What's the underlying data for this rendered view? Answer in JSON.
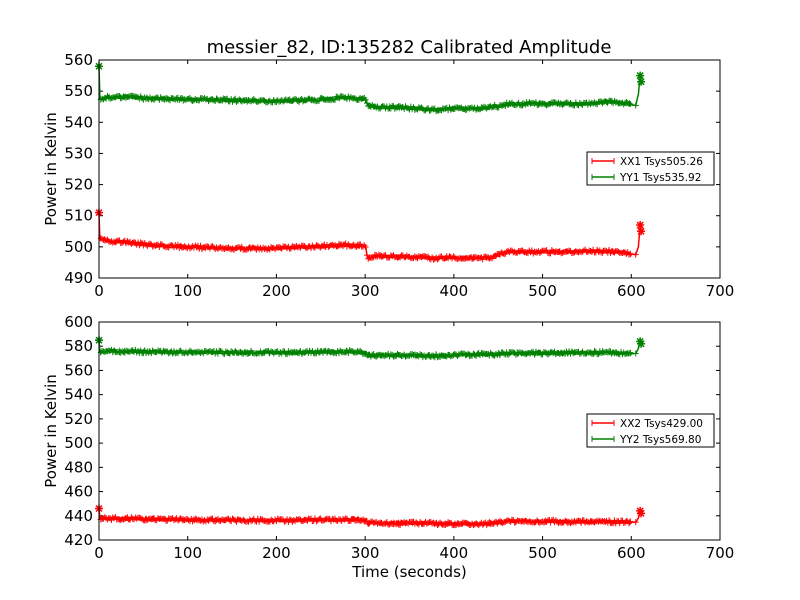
{
  "figure": {
    "title": "messier_82, ID:135282 Calibrated Amplitude"
  },
  "chart_data": [
    {
      "type": "line",
      "title": "messier_82, ID:135282 Calibrated Amplitude",
      "xlabel": "",
      "ylabel": "Power in Kelvin",
      "xlim": [
        0,
        700
      ],
      "ylim": [
        490,
        560
      ],
      "xticks": [
        0,
        100,
        200,
        300,
        400,
        500,
        600,
        700
      ],
      "yticks": [
        490,
        500,
        510,
        520,
        530,
        540,
        550,
        560
      ],
      "grid": false,
      "legend_position": "center-right",
      "series": [
        {
          "name": "XX1 Tsys505.26",
          "color": "#ff0000",
          "marker": "plus",
          "x": [
            0,
            1,
            2,
            10,
            30,
            60,
            100,
            150,
            200,
            250,
            280,
            300,
            303,
            310,
            350,
            380,
            400,
            440,
            460,
            500,
            550,
            580,
            600,
            605,
            608,
            610,
            611
          ],
          "y": [
            511,
            502,
            503,
            502,
            501.5,
            500.5,
            500,
            499.5,
            499.5,
            500.2,
            500.6,
            500.2,
            496.5,
            497,
            496.8,
            496.3,
            496.6,
            496.4,
            498.3,
            498.4,
            498.6,
            498.5,
            497.8,
            497.5,
            500,
            507,
            505
          ]
        },
        {
          "name": "YY1 Tsys535.92",
          "color": "#008000",
          "marker": "plus",
          "x": [
            0,
            1,
            2,
            10,
            30,
            60,
            100,
            150,
            200,
            250,
            280,
            300,
            303,
            310,
            350,
            380,
            400,
            430,
            460,
            500,
            550,
            580,
            600,
            605,
            608,
            610,
            611
          ],
          "y": [
            558,
            548,
            547.5,
            548,
            548.2,
            547.6,
            547.4,
            547.1,
            546.8,
            547.3,
            548,
            547.3,
            545.2,
            545,
            544.6,
            544,
            544.6,
            544.3,
            545.8,
            546,
            545.8,
            546.6,
            545.8,
            545.4,
            549,
            555,
            553
          ]
        }
      ]
    },
    {
      "type": "line",
      "title": "",
      "xlabel": "Time (seconds)",
      "ylabel": "Power in Kelvin",
      "xlim": [
        0,
        700
      ],
      "ylim": [
        420,
        600
      ],
      "xticks": [
        0,
        100,
        200,
        300,
        400,
        500,
        600,
        700
      ],
      "yticks": [
        420,
        440,
        460,
        480,
        500,
        520,
        540,
        560,
        580,
        600
      ],
      "grid": false,
      "legend_position": "center-right",
      "series": [
        {
          "name": "XX2 Tsys429.00",
          "color": "#ff0000",
          "marker": "plus",
          "x": [
            0,
            1,
            2,
            10,
            50,
            100,
            150,
            200,
            250,
            280,
            300,
            303,
            350,
            400,
            440,
            460,
            500,
            550,
            600,
            605,
            608,
            610,
            611
          ],
          "y": [
            446,
            438,
            437.5,
            437.8,
            437.3,
            436.6,
            436.4,
            436.2,
            436.6,
            437,
            436.4,
            434,
            433.8,
            433.5,
            433.6,
            435.5,
            435.4,
            435.1,
            435,
            434.8,
            438,
            444,
            442
          ]
        },
        {
          "name": "YY2 Tsys569.80",
          "color": "#008000",
          "marker": "plus",
          "x": [
            0,
            1,
            2,
            10,
            50,
            100,
            150,
            200,
            250,
            280,
            300,
            303,
            350,
            380,
            400,
            440,
            500,
            550,
            600,
            605,
            608,
            610,
            611
          ],
          "y": [
            585,
            576,
            575.5,
            576,
            575.6,
            575,
            575,
            574.6,
            575.2,
            575.6,
            574.6,
            572.4,
            572.6,
            572,
            572.8,
            573.4,
            574.4,
            574.8,
            574.2,
            574,
            578,
            584,
            582
          ]
        }
      ]
    }
  ]
}
